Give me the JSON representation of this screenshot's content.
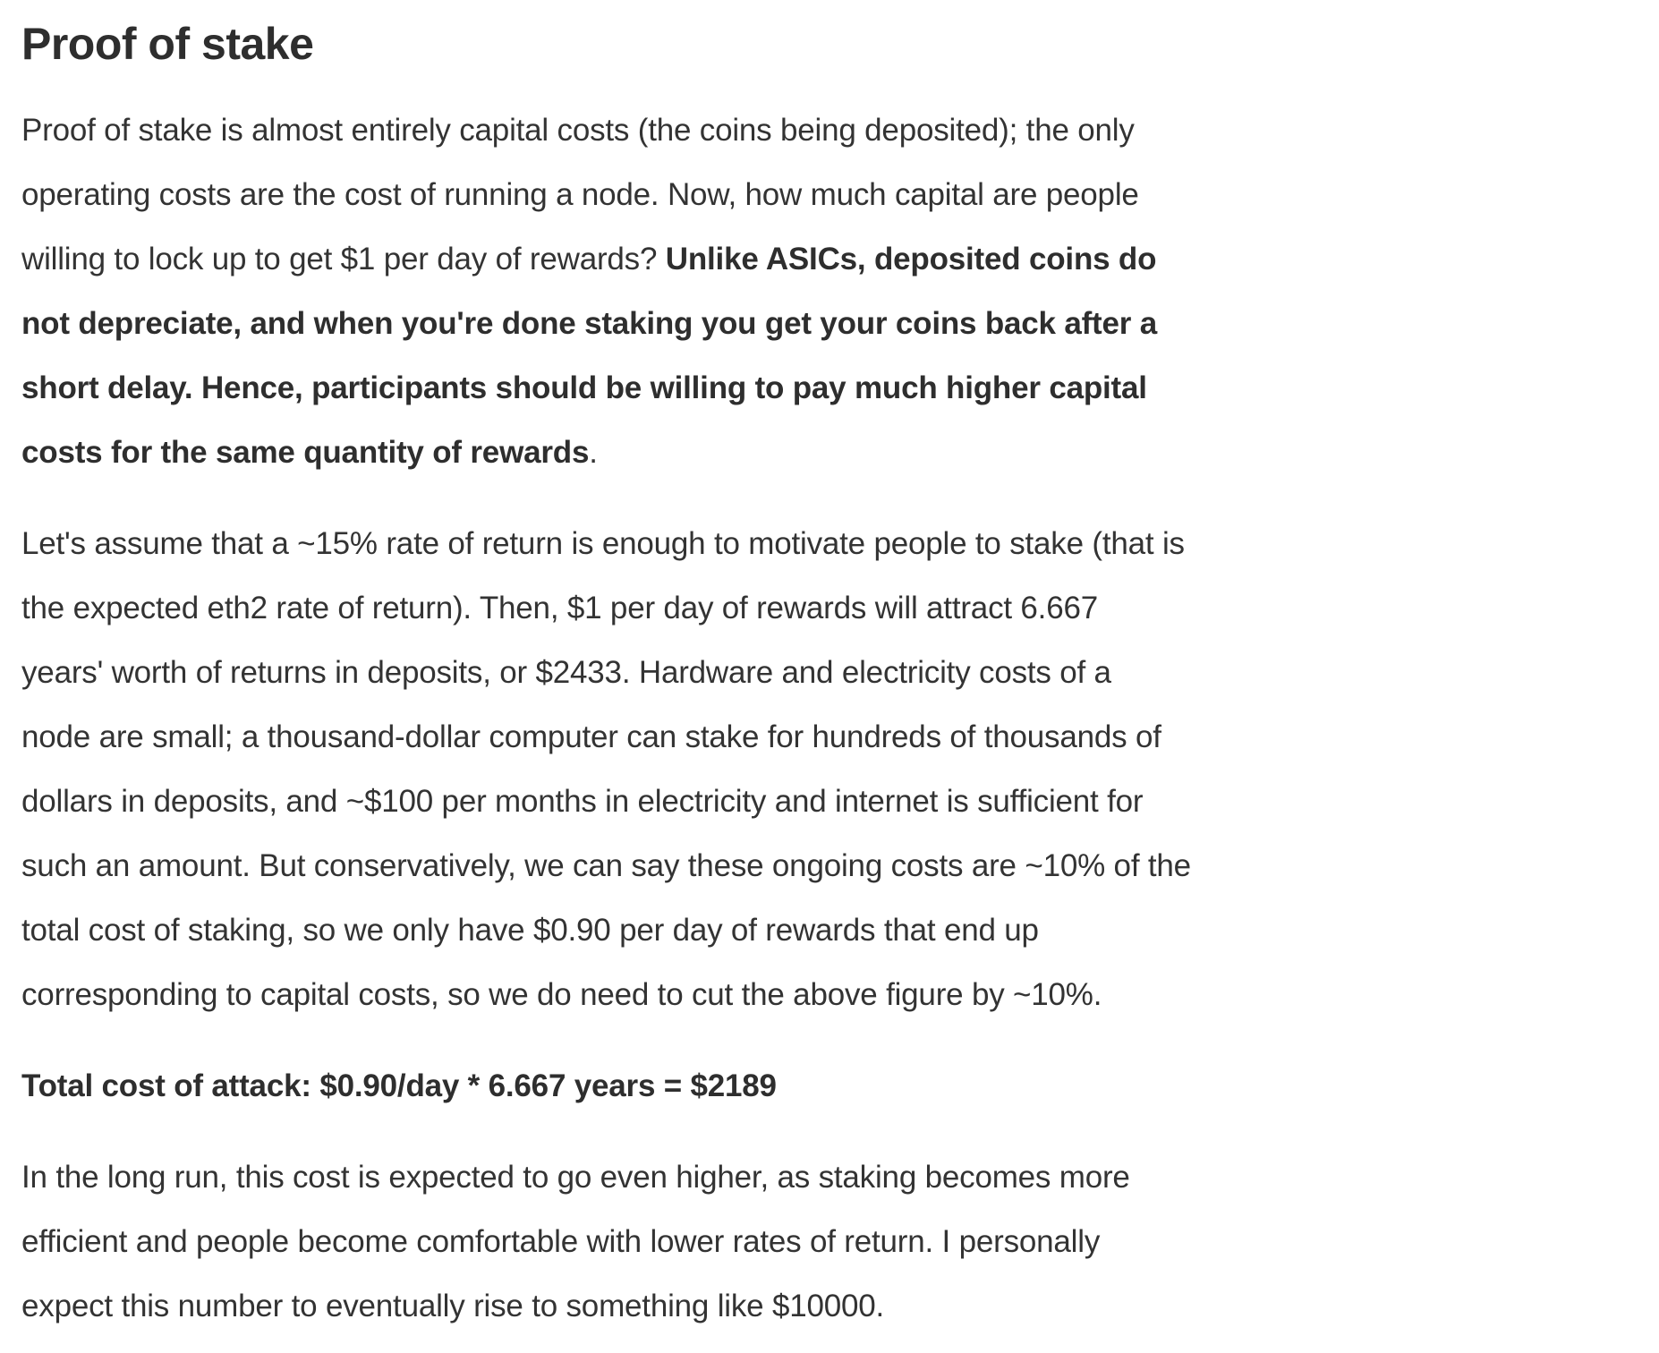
{
  "page": {
    "background": "#ffffff",
    "text_color": "#333333",
    "heading_color": "#2e2e2e"
  },
  "article": {
    "heading": "Proof of stake",
    "paragraphs": [
      {
        "runs": [
          {
            "text": "Proof of stake is almost entirely capital costs (the coins being deposited); the only",
            "bold": false
          },
          {
            "text": "operating costs are the cost of running a node. Now, how much capital are people",
            "bold": false
          },
          {
            "text": "willing to lock up to get $1 per day of rewards? ",
            "bold": false
          },
          {
            "text": "Unlike ASICs, deposited coins do",
            "bold": true
          },
          {
            "text": "not depreciate, and when you're done staking you get your coins back after a",
            "bold": true
          },
          {
            "text": "short delay. Hence, participants should be willing to pay much higher capital",
            "bold": true
          },
          {
            "text": "costs for the same quantity of rewards",
            "bold": true
          },
          {
            "text": ".",
            "bold": false
          }
        ]
      },
      {
        "runs": [
          {
            "text": "Let's assume that a ~15% rate of return is enough to motivate people to stake (that is",
            "bold": false
          },
          {
            "text": "the expected eth2 rate of return). Then, $1 per day of rewards will attract 6.667",
            "bold": false
          },
          {
            "text": "years' worth of returns in deposits, or $2433. Hardware and electricity costs of a",
            "bold": false
          },
          {
            "text": "node are small; a thousand-dollar computer can stake for hundreds of thousands of",
            "bold": false
          },
          {
            "text": "dollars in deposits, and ~$100 per months in electricity and internet is sufficient for",
            "bold": false
          },
          {
            "text": "such an amount. But conservatively, we can say these ongoing costs are ~10% of the",
            "bold": false
          },
          {
            "text": "total cost of staking, so we only have $0.90 per day of rewards that end up",
            "bold": false
          },
          {
            "text": "corresponding to capital costs, so we do need to cut the above figure by ~10%.",
            "bold": false
          }
        ]
      },
      {
        "runs": [
          {
            "text": "Total cost of attack: $0.90/day * 6.667 years = $2189",
            "bold": true
          }
        ]
      },
      {
        "runs": [
          {
            "text": "In the long run, this cost is expected to go even higher, as staking becomes more",
            "bold": false
          },
          {
            "text": "efficient and people become comfortable with lower rates of return. I personally",
            "bold": false
          },
          {
            "text": "expect this number to eventually rise to something like $10000.",
            "bold": false
          }
        ]
      }
    ]
  }
}
